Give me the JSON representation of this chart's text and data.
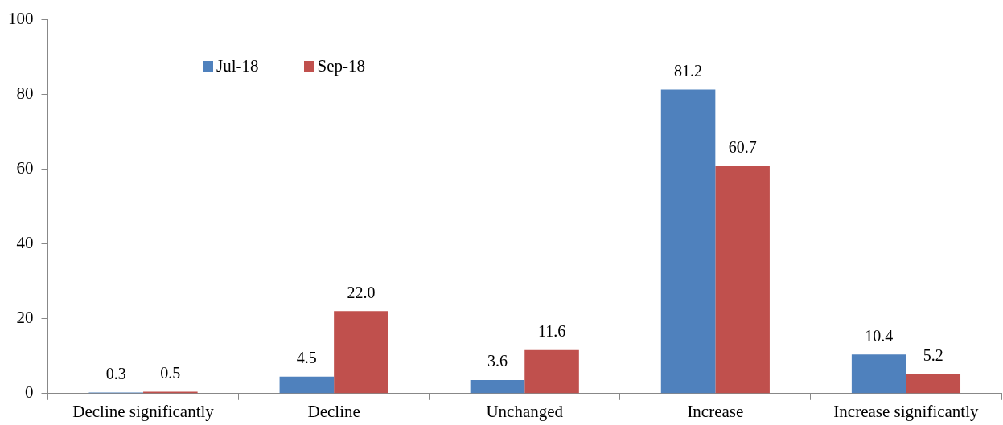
{
  "chart_data": {
    "type": "bar",
    "categories": [
      "Decline significantly",
      "Decline",
      "Unchanged",
      "Increase",
      "Increase significantly"
    ],
    "series": [
      {
        "name": "Jul-18",
        "color": "#4f81bd",
        "values": [
          0.3,
          4.5,
          3.6,
          81.2,
          10.4
        ],
        "value_labels": [
          "0.3",
          "4.5",
          "3.6",
          "81.2",
          "10.4"
        ]
      },
      {
        "name": "Sep-18",
        "color": "#c0504d",
        "values": [
          0.5,
          22.0,
          11.6,
          60.7,
          5.2
        ],
        "value_labels": [
          "0.5",
          "22.0",
          "11.6",
          "60.7",
          "5.2"
        ]
      }
    ],
    "ylim": [
      0,
      100
    ],
    "yticks": [
      0,
      20,
      40,
      60,
      80,
      100
    ],
    "grid": false,
    "legend": "top left"
  }
}
